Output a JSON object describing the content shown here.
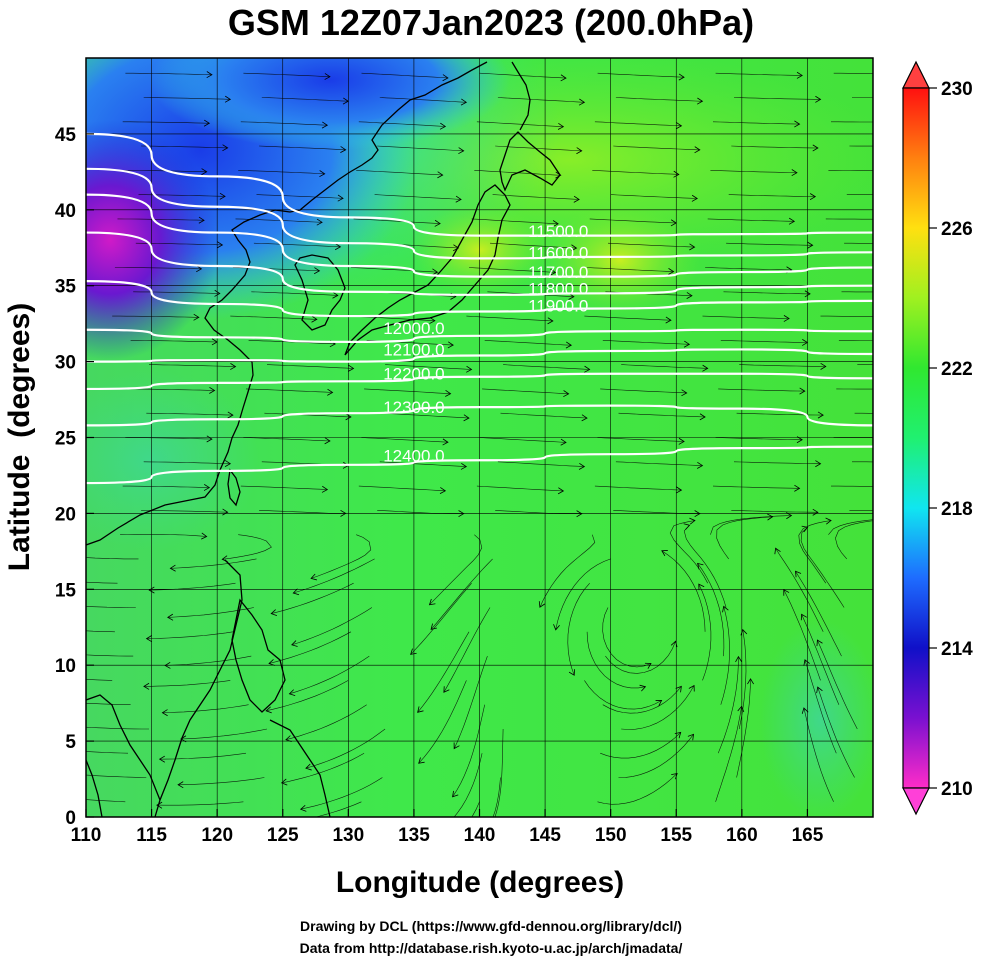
{
  "header": {
    "title": "GSM 12Z07Jan2023 (200.0hPa)"
  },
  "axes": {
    "xlabel": "Longitude (degrees)",
    "ylabel": "Latitude  (degrees)",
    "x_ticks": [
      "110",
      "115",
      "120",
      "125",
      "130",
      "135",
      "140",
      "145",
      "150",
      "155",
      "160",
      "165"
    ],
    "x_values": [
      110,
      115,
      120,
      125,
      130,
      135,
      140,
      145,
      150,
      155,
      160,
      165
    ],
    "x_range": [
      110,
      170
    ],
    "y_ticks": [
      "0",
      "5",
      "10",
      "15",
      "20",
      "25",
      "30",
      "35",
      "40",
      "45"
    ],
    "y_values": [
      0,
      5,
      10,
      15,
      20,
      25,
      30,
      35,
      40,
      45
    ],
    "y_range": [
      0,
      50
    ]
  },
  "colorbar": {
    "labels": [
      "230",
      "226",
      "222",
      "218",
      "214",
      "210"
    ],
    "values": [
      230,
      226,
      222,
      218,
      214,
      210
    ],
    "range": [
      210,
      230
    ],
    "colors": {
      "210": "#ff2cc8",
      "212": "#7a10d0",
      "214": "#1010c8",
      "216": "#1e6cff",
      "218": "#10e6f0",
      "219": "#20f0a0",
      "220": "#30e860",
      "222": "#30e830",
      "224": "#a0f020",
      "226": "#ffe010",
      "228": "#ff8010",
      "230": "#ff1010"
    }
  },
  "contours": [
    {
      "value": 11500,
      "label": "11500.0",
      "points": [
        [
          110,
          45
        ],
        [
          120,
          42.2
        ],
        [
          130,
          39.5
        ],
        [
          140,
          38.3
        ],
        [
          150,
          38.3
        ],
        [
          160,
          38.4
        ],
        [
          170,
          38.5
        ]
      ]
    },
    {
      "value": 11600,
      "label": "11600.0",
      "points": [
        [
          110,
          42.7
        ],
        [
          120,
          40.2
        ],
        [
          130,
          37.8
        ],
        [
          140,
          36.8
        ],
        [
          150,
          36.9
        ],
        [
          160,
          37.0
        ],
        [
          170,
          37.2
        ]
      ]
    },
    {
      "value": 11700,
      "label": "11700.0",
      "points": [
        [
          110,
          41.0
        ],
        [
          120,
          38.5
        ],
        [
          130,
          36.3
        ],
        [
          140,
          35.6
        ],
        [
          150,
          35.6
        ],
        [
          160,
          35.9
        ],
        [
          170,
          36.2
        ]
      ]
    },
    {
      "value": 11800,
      "label": "11800.0",
      "points": [
        [
          110,
          38.5
        ],
        [
          120,
          36.3
        ],
        [
          130,
          34.6
        ],
        [
          140,
          34.4
        ],
        [
          150,
          34.5
        ],
        [
          160,
          34.9
        ],
        [
          170,
          35.0
        ]
      ]
    },
    {
      "value": 11900,
      "label": "11900.0",
      "points": [
        [
          110,
          35.3
        ],
        [
          120,
          33.8
        ],
        [
          130,
          33.0
        ],
        [
          140,
          33.3
        ],
        [
          150,
          33.5
        ],
        [
          160,
          33.9
        ],
        [
          170,
          34.0
        ]
      ]
    },
    {
      "value": 12000,
      "label": "12000.0",
      "points": [
        [
          110,
          32.1
        ],
        [
          120,
          31.6
        ],
        [
          130,
          31.3
        ],
        [
          140,
          31.7
        ],
        [
          150,
          32.0
        ],
        [
          160,
          32.1
        ],
        [
          170,
          32.0
        ]
      ]
    },
    {
      "value": 12100,
      "label": "12100.0",
      "points": [
        [
          110,
          30.0
        ],
        [
          120,
          30.1
        ],
        [
          130,
          30.0
        ],
        [
          140,
          30.4
        ],
        [
          150,
          30.7
        ],
        [
          160,
          30.8
        ],
        [
          170,
          30.5
        ]
      ]
    },
    {
      "value": 12200,
      "label": "12200.0",
      "points": [
        [
          110,
          28.2
        ],
        [
          120,
          28.6
        ],
        [
          130,
          28.7
        ],
        [
          140,
          29.0
        ],
        [
          150,
          29.2
        ],
        [
          160,
          29.2
        ],
        [
          170,
          28.9
        ]
      ]
    },
    {
      "value": 12300,
      "label": "12300.0",
      "points": [
        [
          110,
          25.8
        ],
        [
          120,
          26.2
        ],
        [
          130,
          26.6
        ],
        [
          140,
          27.0
        ],
        [
          150,
          27.1
        ],
        [
          160,
          26.9
        ],
        [
          170,
          25.8
        ]
      ]
    },
    {
      "value": 12400,
      "label": "12400.0",
      "points": [
        [
          110,
          22.0
        ],
        [
          120,
          22.8
        ],
        [
          130,
          23.2
        ],
        [
          140,
          23.5
        ],
        [
          150,
          23.9
        ],
        [
          160,
          24.3
        ],
        [
          170,
          24.4
        ]
      ]
    }
  ]
}
